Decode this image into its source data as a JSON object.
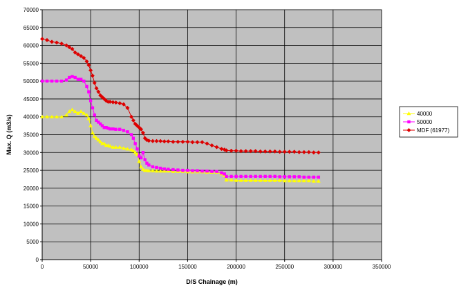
{
  "chart_data": {
    "type": "line",
    "xlabel": "D/S Chainage (m)",
    "ylabel": "Max. Q (m3/s)",
    "xlim": [
      0,
      350000
    ],
    "ylim": [
      0,
      70000
    ],
    "x_ticks": [
      0,
      50000,
      100000,
      150000,
      200000,
      250000,
      300000,
      350000
    ],
    "y_ticks": [
      0,
      5000,
      10000,
      15000,
      20000,
      25000,
      30000,
      35000,
      40000,
      45000,
      50000,
      55000,
      60000,
      65000,
      70000
    ],
    "grid": true,
    "plot_background": "#c0c0c0",
    "legend_position": "right",
    "series": [
      {
        "name": "40000",
        "color": "#ffff00",
        "marker": "triangle",
        "x": [
          0,
          5000,
          10000,
          15000,
          20000,
          25000,
          28000,
          31000,
          34000,
          37000,
          40000,
          43000,
          46000,
          48000,
          50000,
          52000,
          54000,
          56000,
          58000,
          60000,
          62000,
          64000,
          66000,
          68000,
          70000,
          73000,
          76000,
          80000,
          84000,
          88000,
          92000,
          94000,
          96000,
          98000,
          100000,
          102000,
          104000,
          106000,
          108000,
          110000,
          114000,
          118000,
          122000,
          126000,
          130000,
          135000,
          140000,
          145000,
          150000,
          155000,
          160000,
          165000,
          170000,
          175000,
          180000,
          185000,
          188000,
          190000,
          195000,
          200000,
          205000,
          210000,
          215000,
          220000,
          225000,
          230000,
          235000,
          240000,
          245000,
          250000,
          255000,
          260000,
          265000,
          270000,
          275000,
          280000,
          285000
        ],
        "y": [
          40000,
          40000,
          40000,
          40000,
          40000,
          40500,
          41500,
          42000,
          41500,
          41000,
          41500,
          41000,
          40500,
          39500,
          37500,
          35500,
          34500,
          34000,
          33500,
          33000,
          32500,
          32500,
          32000,
          32000,
          31800,
          31500,
          31500,
          31500,
          31200,
          31000,
          30800,
          30500,
          30000,
          29500,
          27500,
          26000,
          25300,
          25000,
          25000,
          24900,
          24900,
          24800,
          24800,
          24800,
          24800,
          24700,
          24700,
          24700,
          24600,
          24600,
          24600,
          24600,
          24500,
          24500,
          24500,
          24000,
          23500,
          22300,
          22300,
          22200,
          22200,
          22200,
          22200,
          22200,
          22200,
          22200,
          22200,
          22200,
          22200,
          22100,
          22100,
          22100,
          22100,
          22100,
          22100,
          22000,
          22000
        ]
      },
      {
        "name": "50000",
        "color": "#ff00ff",
        "marker": "square",
        "x": [
          0,
          5000,
          10000,
          15000,
          20000,
          25000,
          28000,
          31000,
          34000,
          37000,
          40000,
          43000,
          46000,
          48000,
          50000,
          52000,
          54000,
          56000,
          58000,
          60000,
          62000,
          64000,
          66000,
          68000,
          70000,
          73000,
          76000,
          80000,
          84000,
          88000,
          92000,
          94000,
          96000,
          98000,
          100000,
          102000,
          104000,
          106000,
          108000,
          110000,
          114000,
          118000,
          122000,
          126000,
          130000,
          135000,
          140000,
          145000,
          150000,
          155000,
          160000,
          165000,
          170000,
          175000,
          180000,
          185000,
          188000,
          190000,
          195000,
          200000,
          205000,
          210000,
          215000,
          220000,
          225000,
          230000,
          235000,
          240000,
          245000,
          250000,
          255000,
          260000,
          265000,
          270000,
          275000,
          280000,
          285000
        ],
        "y": [
          50000,
          50000,
          50000,
          50000,
          50000,
          50300,
          51000,
          51300,
          51000,
          50500,
          50500,
          50000,
          48500,
          47000,
          44500,
          42500,
          40500,
          39000,
          38500,
          38000,
          37500,
          37000,
          37000,
          36800,
          36600,
          36600,
          36500,
          36500,
          36200,
          35800,
          35000,
          34000,
          32500,
          31000,
          29000,
          28500,
          30000,
          28000,
          27000,
          26500,
          26000,
          25800,
          25600,
          25400,
          25300,
          25200,
          25100,
          25000,
          25000,
          24900,
          24900,
          24800,
          24800,
          24700,
          24700,
          24300,
          24000,
          23300,
          23300,
          23300,
          23300,
          23300,
          23300,
          23300,
          23300,
          23300,
          23300,
          23300,
          23200,
          23200,
          23200,
          23200,
          23200,
          23100,
          23100,
          23100,
          23100
        ]
      },
      {
        "name": "MDF (61977)",
        "color": "#dd0000",
        "marker": "diamond",
        "x": [
          0,
          5000,
          10000,
          15000,
          20000,
          25000,
          28000,
          31000,
          34000,
          37000,
          40000,
          43000,
          46000,
          48000,
          50000,
          52000,
          54000,
          56000,
          58000,
          60000,
          62000,
          64000,
          66000,
          68000,
          70000,
          73000,
          76000,
          80000,
          84000,
          88000,
          92000,
          94000,
          96000,
          98000,
          100000,
          102000,
          104000,
          106000,
          108000,
          110000,
          114000,
          118000,
          122000,
          126000,
          130000,
          135000,
          140000,
          145000,
          150000,
          155000,
          160000,
          165000,
          170000,
          175000,
          180000,
          185000,
          188000,
          190000,
          195000,
          200000,
          205000,
          210000,
          215000,
          220000,
          225000,
          230000,
          235000,
          240000,
          245000,
          250000,
          255000,
          260000,
          265000,
          270000,
          275000,
          280000,
          285000
        ],
        "y": [
          61800,
          61500,
          61000,
          60800,
          60500,
          60000,
          59500,
          59000,
          58000,
          57500,
          57000,
          56500,
          55500,
          54500,
          53000,
          51500,
          49500,
          48000,
          47000,
          46000,
          45500,
          45000,
          44500,
          44200,
          44200,
          44100,
          44000,
          43800,
          43500,
          42500,
          40000,
          39000,
          38000,
          37500,
          37000,
          36500,
          35500,
          34000,
          33500,
          33300,
          33200,
          33200,
          33200,
          33100,
          33100,
          33000,
          33000,
          33000,
          33000,
          32900,
          32900,
          32900,
          32500,
          32000,
          31500,
          31000,
          30800,
          30600,
          30500,
          30500,
          30400,
          30400,
          30400,
          30400,
          30300,
          30300,
          30300,
          30300,
          30200,
          30200,
          30200,
          30200,
          30100,
          30100,
          30100,
          30000,
          30000
        ]
      }
    ]
  }
}
